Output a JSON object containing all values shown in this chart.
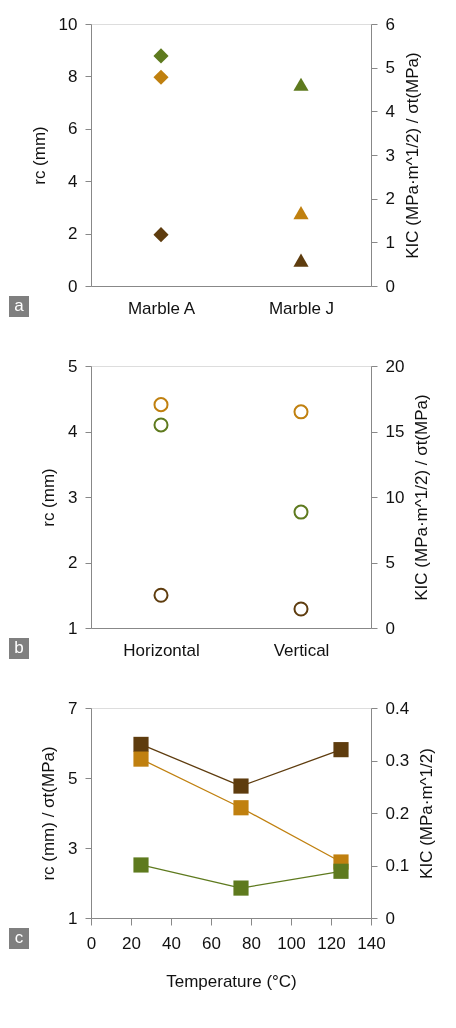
{
  "chart_data": [
    {
      "type": "scatter",
      "categories": [
        "Marble A",
        "Marble J"
      ],
      "ylabel": "rc (mm)",
      "y2label": "KIC (MPa·m^1/2) / σt(MPa)",
      "ylim": [
        0,
        10
      ],
      "yticks": [
        0,
        2,
        4,
        6,
        8,
        10
      ],
      "y2lim": [
        0,
        6
      ],
      "y2ticks": [
        0,
        1,
        2,
        3,
        4,
        5,
        6
      ],
      "annotations": [
        "a"
      ],
      "grid": false,
      "legend": false,
      "series": [
        {
          "color": "#5e3c0e",
          "marker": "diamond",
          "values": [
            1.96,
            null
          ]
        },
        {
          "color": "#5e3c0e",
          "marker": "triangle",
          "values": [
            null,
            0.99
          ]
        },
        {
          "color": "#c0800f",
          "marker": "diamond",
          "axis": "y2",
          "values": [
            4.78,
            null
          ]
        },
        {
          "color": "#c0800f",
          "marker": "triangle",
          "axis": "y2",
          "values": [
            null,
            1.68
          ]
        },
        {
          "color": "#5e7a1e",
          "marker": "diamond",
          "axis": "y2",
          "values": [
            5.27,
            null
          ]
        },
        {
          "color": "#5e7a1e",
          "marker": "triangle",
          "axis": "y2",
          "values": [
            null,
            4.62
          ]
        }
      ]
    },
    {
      "type": "scatter",
      "categories": [
        "Horizontal",
        "Vertical"
      ],
      "ylabel": "rc (mm)",
      "y2label": "KIC (MPa·m^1/2) / σt(MPa)",
      "ylim": [
        1,
        5
      ],
      "yticks": [
        1,
        2,
        3,
        4,
        5
      ],
      "y2lim": [
        0,
        20
      ],
      "y2ticks": [
        0,
        5,
        10,
        15,
        20
      ],
      "annotations": [
        "b"
      ],
      "grid": false,
      "legend": false,
      "series": [
        {
          "color": "#5e3c0e",
          "marker": "circle",
          "values": [
            1.5,
            1.29
          ]
        },
        {
          "color": "#c0800f",
          "marker": "circle",
          "axis": "y2",
          "values": [
            17.05,
            16.5
          ]
        },
        {
          "color": "#5e7a1e",
          "marker": "circle",
          "axis": "y2",
          "values": [
            15.5,
            8.85
          ]
        }
      ]
    },
    {
      "type": "line",
      "x": [
        25,
        75,
        125
      ],
      "xlim": [
        0,
        140
      ],
      "xticks": [
        0,
        20,
        40,
        60,
        80,
        100,
        120,
        140
      ],
      "xlabel": "Temperature (°C)",
      "ylabel": "rc (mm) / σt(MPa)",
      "y2label": "KIC (MPa·m^1/2)",
      "ylim": [
        1,
        7
      ],
      "yticks": [
        1,
        3,
        5,
        7
      ],
      "y2lim": [
        0,
        0.4
      ],
      "y2ticks": [
        0,
        0.1,
        0.2,
        0.3,
        0.4
      ],
      "annotations": [
        "c"
      ],
      "grid": false,
      "legend": false,
      "marker": "square",
      "series": [
        {
          "color": "#5e3c0e",
          "values": [
            5.96,
            4.77,
            5.81
          ]
        },
        {
          "color": "#c0800f",
          "values": [
            5.54,
            4.15,
            2.6
          ]
        },
        {
          "color": "#5e7a1e",
          "axis": "y2",
          "values": [
            0.101,
            0.057,
            0.089
          ]
        }
      ]
    }
  ]
}
